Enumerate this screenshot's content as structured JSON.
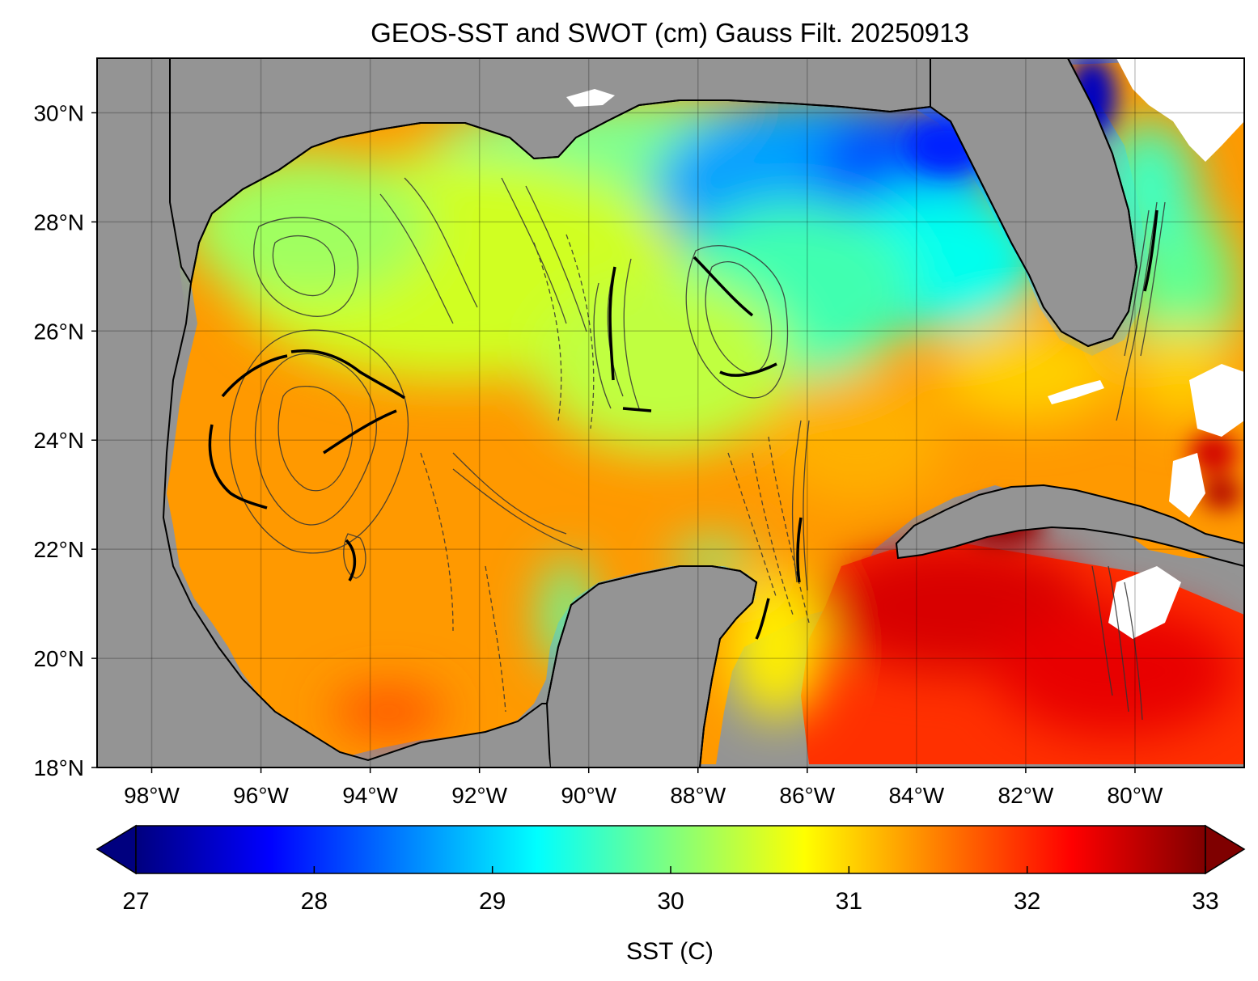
{
  "title": "GEOS-SST  and SWOT (cm) Gauss Filt. 20250913",
  "map": {
    "lon_range": [
      -99,
      -78
    ],
    "lat_range": [
      18,
      31
    ],
    "land_color": "#949494",
    "grid": true,
    "lon_ticks": [
      {
        "value": -98,
        "label": "98°W"
      },
      {
        "value": -96,
        "label": "96°W"
      },
      {
        "value": -94,
        "label": "94°W"
      },
      {
        "value": -92,
        "label": "92°W"
      },
      {
        "value": -90,
        "label": "90°W"
      },
      {
        "value": -88,
        "label": "88°W"
      },
      {
        "value": -86,
        "label": "86°W"
      },
      {
        "value": -84,
        "label": "84°W"
      },
      {
        "value": -82,
        "label": "82°W"
      },
      {
        "value": -80,
        "label": "80°W"
      }
    ],
    "lat_ticks": [
      {
        "value": 18,
        "label": "18°N"
      },
      {
        "value": 20,
        "label": "20°N"
      },
      {
        "value": 22,
        "label": "22°N"
      },
      {
        "value": 24,
        "label": "24°N"
      },
      {
        "value": 26,
        "label": "26°N"
      },
      {
        "value": 28,
        "label": "28°N"
      },
      {
        "value": 30,
        "label": "30°N"
      }
    ]
  },
  "colorbar": {
    "label": "SST (C)",
    "min": 27,
    "max": 33,
    "extend": "both",
    "colormap": "jet",
    "ticks": [
      {
        "value": 27,
        "label": "27"
      },
      {
        "value": 28,
        "label": "28"
      },
      {
        "value": 29,
        "label": "29"
      },
      {
        "value": 30,
        "label": "30"
      },
      {
        "value": 31,
        "label": "31"
      },
      {
        "value": 32,
        "label": "32"
      },
      {
        "value": 33,
        "label": "33"
      }
    ],
    "stops": [
      "#00007f",
      "#0000ff",
      "#007fff",
      "#00ffff",
      "#7fff7f",
      "#ffff00",
      "#ff7f00",
      "#ff0000",
      "#7f0000"
    ]
  }
}
